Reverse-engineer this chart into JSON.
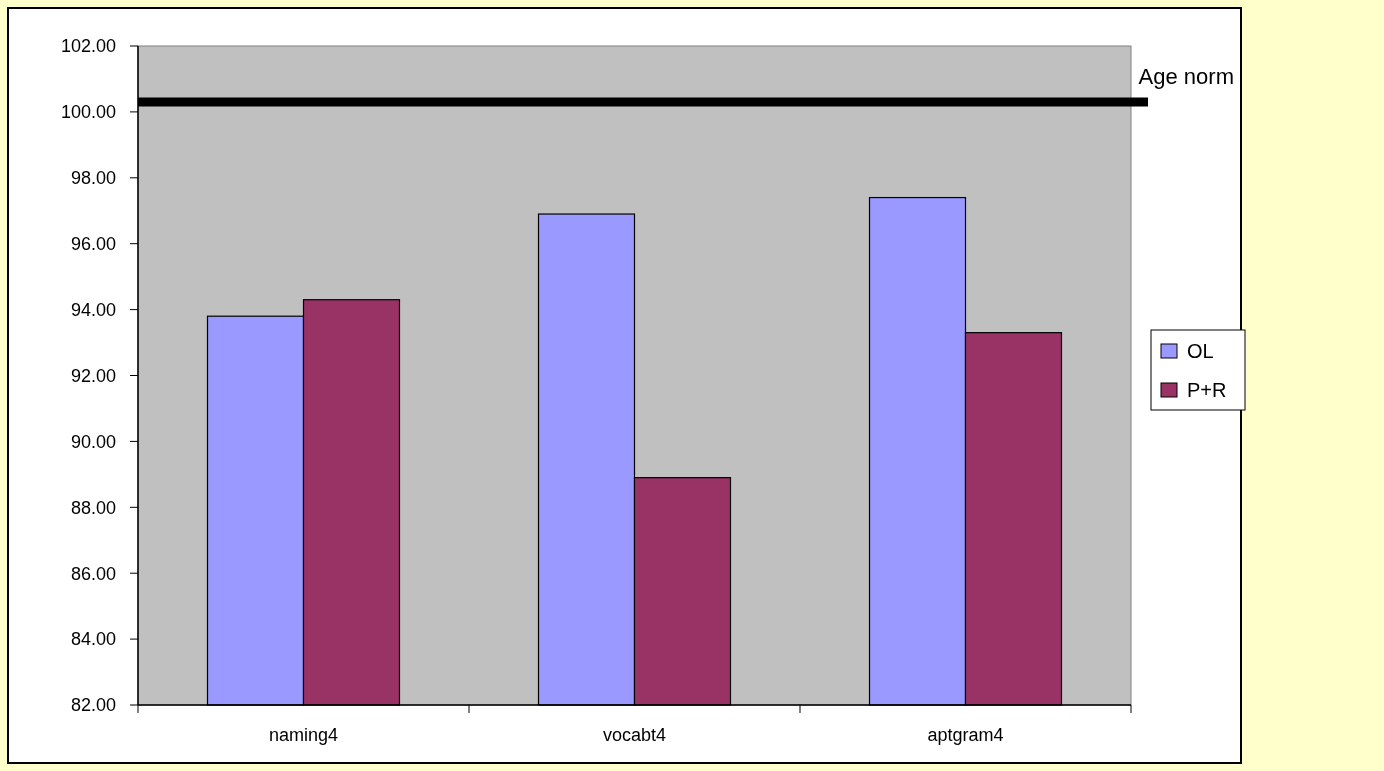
{
  "chart_data": {
    "type": "bar",
    "categories": [
      "naming4",
      "vocabt4",
      "aptgram4"
    ],
    "series": [
      {
        "name": "OL",
        "color": "#9999ff",
        "values": [
          93.8,
          96.9,
          97.4
        ]
      },
      {
        "name": "P+R",
        "color": "#993366",
        "values": [
          94.3,
          88.9,
          93.3
        ]
      }
    ],
    "ylim": [
      82,
      102
    ],
    "yticks": [
      {
        "value": 82,
        "label": "82.00"
      },
      {
        "value": 84,
        "label": "84.00"
      },
      {
        "value": 86,
        "label": "86.00"
      },
      {
        "value": 88,
        "label": "88.00"
      },
      {
        "value": 90,
        "label": "90.00"
      },
      {
        "value": 92,
        "label": "92.00"
      },
      {
        "value": 94,
        "label": "94.00"
      },
      {
        "value": 96,
        "label": "96.00"
      },
      {
        "value": 98,
        "label": "98.00"
      },
      {
        "value": 100,
        "label": "100.00"
      },
      {
        "value": 102,
        "label": "102.00"
      }
    ],
    "ref_lines": [
      {
        "axis": "y",
        "value": 100.3,
        "label": "Age norm",
        "color": "#000000"
      }
    ],
    "legend": "right"
  }
}
